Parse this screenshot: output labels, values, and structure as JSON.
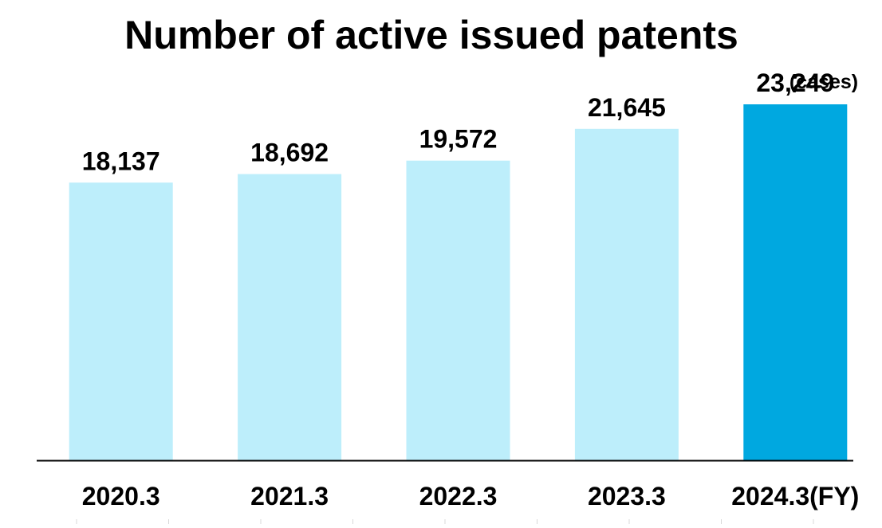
{
  "chart_data": {
    "type": "bar",
    "title": "Number of active issued patents",
    "unit_label": "(cases)",
    "categories": [
      "2020.3",
      "2021.3",
      "2022.3",
      "2023.3",
      "2024.3(FY)"
    ],
    "values": [
      18137,
      18692,
      19572,
      21645,
      23249
    ],
    "value_labels": [
      "18,137",
      "18,692",
      "19,572",
      "21,645",
      "23,249"
    ],
    "xlabel": "",
    "ylabel": "",
    "ylim": [
      0,
      25000
    ],
    "grid": false,
    "legend": "none",
    "colors": {
      "bar": "#bdeefb",
      "highlight_bar": "#00a8e0",
      "axis": "#000000"
    },
    "highlight_index": 4
  }
}
